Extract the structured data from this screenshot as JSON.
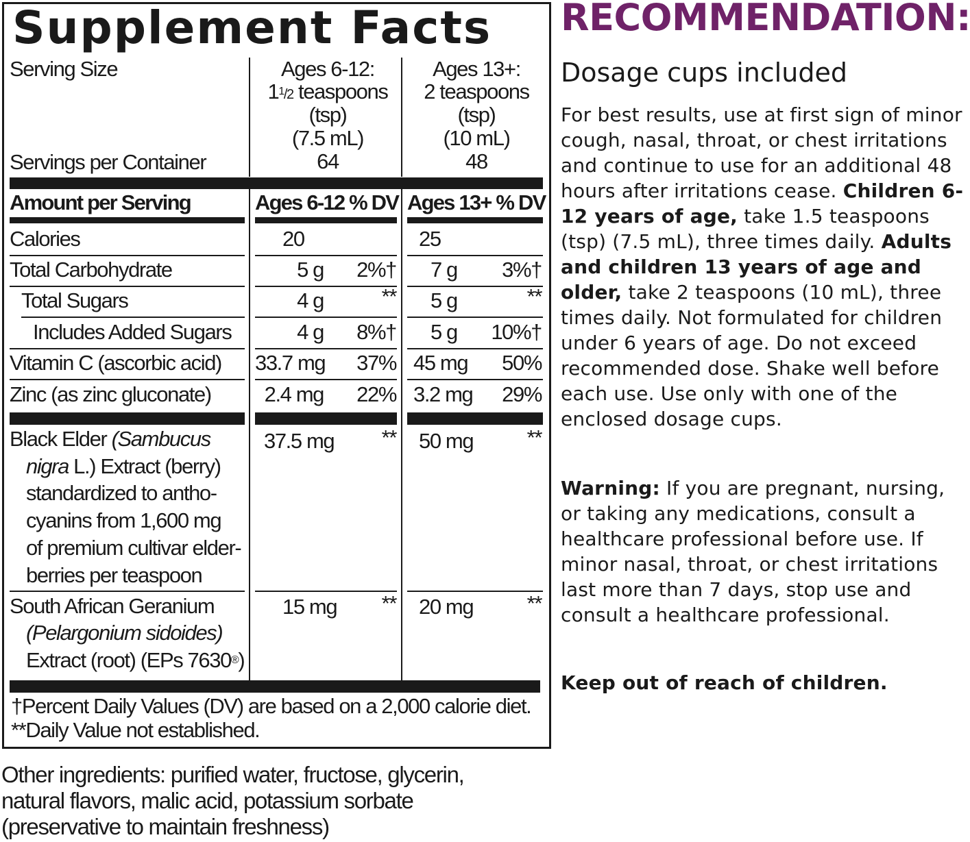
{
  "facts": {
    "title": "Supplement Facts",
    "serving_size_label": "Serving Size",
    "servings_per_container_label": "Servings per Container",
    "col1": {
      "line1": "Ages 6-12:",
      "whole": "1",
      "num": "1",
      "den": "/2",
      "unit": " teaspoons",
      "line3": "(tsp)",
      "line4": "(7.5 mL)",
      "servings": "64"
    },
    "col2": {
      "line1": "Ages 13+:",
      "line2": "2 teaspoons",
      "line3": "(tsp)",
      "line4": "(10 mL)",
      "servings": "48"
    },
    "header": {
      "amount": "Amount per Serving",
      "col1": "Ages 6-12 % DV",
      "col2": "Ages 13+ % DV"
    },
    "rows": [
      {
        "name": "Calories",
        "a1": "20",
        "d1": "",
        "a2": "25",
        "d2": ""
      },
      {
        "name": "Total Carbohydrate",
        "a1": "5 g",
        "d1": "2%†",
        "a2": "7 g",
        "d2": "3%†"
      },
      {
        "name": "Total Sugars",
        "a1": "4 g",
        "d1": "**",
        "a2": "5 g",
        "d2": "**"
      },
      {
        "name": "Includes Added Sugars",
        "a1": "4 g",
        "d1": "8%†",
        "a2": "5 g",
        "d2": "10%†"
      },
      {
        "name": "Vitamin C (ascorbic acid)",
        "a1": "33.7 mg",
        "d1": "37%",
        "a2": "45 mg",
        "d2": "50%"
      },
      {
        "name": "Zinc (as zinc gluconate)",
        "a1": "2.4 mg",
        "d1": "22%",
        "a2": "3.2 mg",
        "d2": "29%"
      }
    ],
    "elder": {
      "l1a": "Black Elder ",
      "l1b": "(Sambucus",
      "l2a": "nigra",
      "l2b": " L.) Extract (berry)",
      "l3": "standardized to antho-",
      "l4": "cyanins from 1,600 mg",
      "l5": "of premium cultivar elder-",
      "l6": "berries per teaspoon",
      "a1": "37.5 mg",
      "d1": "**",
      "a2": "50 mg",
      "d2": "**"
    },
    "geranium": {
      "l1": "South African Geranium",
      "l2": "(Pelargonium sidoides)",
      "l3": "Extract (root) (EPs 7630",
      "reg": "®",
      "l3end": ")",
      "a1": "15 mg",
      "d1": "**",
      "a2": "20 mg",
      "d2": "**"
    },
    "footnote1": "†Percent Daily Values (DV) are based on a 2,000 calorie diet.",
    "footnote2": "**Daily Value not established."
  },
  "other_ingredients": "Other ingredients: purified water, fructose, glycerin, natural flavors, malic acid, potassium sorbate (preservative to maintain freshness)",
  "recommendation": {
    "title": "RECOMMENDATION:",
    "title_color": "#6f2268",
    "subtitle": "Dosage cups included",
    "p1a": "For best results, use at first sign of minor cough, nasal, throat, or chest irritations and continue to use for an additional 48 hours after irritations cease. ",
    "p1b": "Children 6-12 years of age,",
    "p1c": " take 1.5 teaspoons (tsp) (7.5 mL), three times daily. ",
    "p1d": "Adults and children 13 years of age and older,",
    "p1e": " take 2 teaspoons (10 mL), three times daily. Not formulated for children under 6 years of age. Do not exceed recommended dose. Shake well before each use. Use only with one of the enclosed dosage cups.",
    "warning_label": "Warning:",
    "warning_text": " If you are pregnant, nursing, or taking any medications, consult a healthcare professional before use. If minor nasal, throat, or chest irritations last more than 7 days, stop use and consult a healthcare professional.",
    "keep_out": "Keep out of reach of children."
  }
}
